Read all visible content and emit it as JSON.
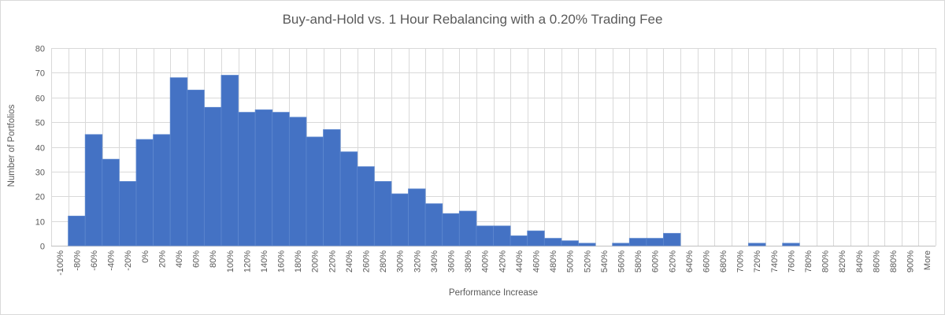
{
  "chart": {
    "title": "Buy-and-Hold vs. 1 Hour Rebalancing with a 0.20% Trading Fee"
  },
  "chart_data": {
    "type": "bar",
    "subtype": "histogram",
    "title": "Buy-and-Hold vs. 1 Hour Rebalancing with a 0.20% Trading Fee",
    "xlabel": "Performance Increase",
    "ylabel": "Number of Portfolios",
    "ylim": [
      0,
      80
    ],
    "yticks": [
      "0",
      "10",
      "20",
      "30",
      "40",
      "50",
      "60",
      "70",
      "80"
    ],
    "grid": true,
    "legend": "none",
    "categories": [
      "-100%",
      "-80%",
      "-60%",
      "-40%",
      "-20%",
      "0%",
      "20%",
      "40%",
      "60%",
      "80%",
      "100%",
      "120%",
      "140%",
      "160%",
      "180%",
      "200%",
      "220%",
      "240%",
      "260%",
      "280%",
      "300%",
      "320%",
      "340%",
      "360%",
      "380%",
      "400%",
      "420%",
      "440%",
      "460%",
      "480%",
      "500%",
      "520%",
      "540%",
      "560%",
      "580%",
      "600%",
      "620%",
      "640%",
      "660%",
      "680%",
      "700%",
      "720%",
      "740%",
      "760%",
      "780%",
      "800%",
      "820%",
      "840%",
      "860%",
      "880%",
      "900%",
      "More"
    ],
    "values": [
      0,
      12,
      45,
      35,
      26,
      43,
      45,
      68,
      63,
      56,
      69,
      54,
      55,
      54,
      52,
      44,
      47,
      38,
      32,
      26,
      21,
      23,
      17,
      13,
      14,
      8,
      8,
      4,
      6,
      3,
      2,
      1,
      0,
      1,
      3,
      3,
      5,
      0,
      0,
      0,
      0,
      1,
      0,
      1,
      0,
      0,
      0,
      0,
      0,
      0,
      0,
      0
    ],
    "colors": {
      "bar_fill": "#4472C4",
      "bar_edge": "#5E88CF",
      "gridline": "#D9D9D9",
      "axis_line": "#BFBFBF",
      "text": "#595959"
    }
  }
}
